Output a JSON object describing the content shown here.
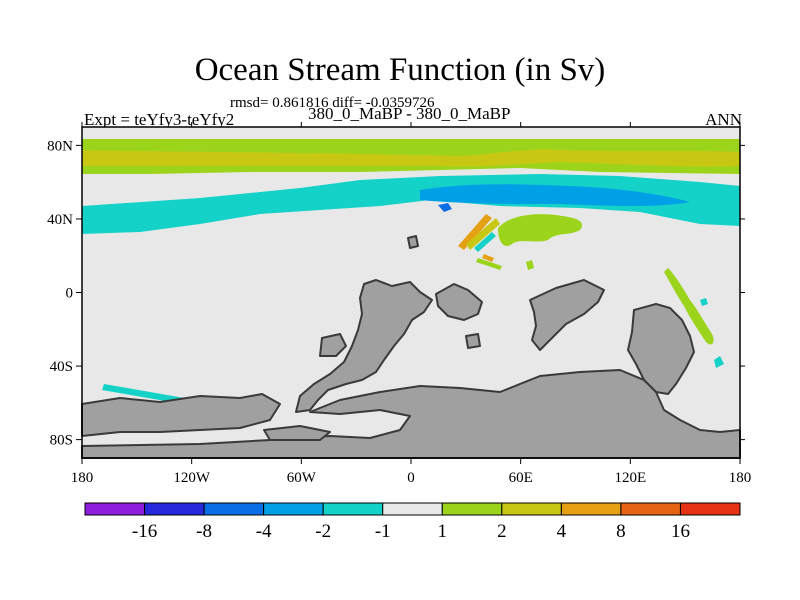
{
  "header": {
    "title": "Ocean Stream Function (in Sv)",
    "stats": "rmsd= 0.861816 diff= -0.0359726",
    "left_label": "Expt = teYfy3-teYfy2",
    "center_label": "380_0_MaBP - 380_0_MaBP",
    "right_label": "ANN"
  },
  "colors": {
    "ocean_zero": "#e8e8e8",
    "land": "#a0a0a0",
    "coast": "#3a3a3a",
    "band_green": "#9cd41c",
    "band_yellow": "#c8c814",
    "band_cyan": "#14d2c8",
    "band_blue": "#00a0e6"
  },
  "chart_data": {
    "type": "heatmap",
    "title": "Ocean Stream Function (in Sv)",
    "projection": "cylindrical equidistant",
    "xlim": [
      -180,
      180
    ],
    "ylim": [
      -90,
      90
    ],
    "x_ticks": [
      {
        "value": -180,
        "label": "180"
      },
      {
        "value": -120,
        "label": "120W"
      },
      {
        "value": -60,
        "label": "60W"
      },
      {
        "value": 0,
        "label": "0"
      },
      {
        "value": 60,
        "label": "60E"
      },
      {
        "value": 120,
        "label": "120E"
      },
      {
        "value": 180,
        "label": "180"
      }
    ],
    "y_ticks": [
      {
        "value": 80,
        "label": "80N"
      },
      {
        "value": 40,
        "label": "40N"
      },
      {
        "value": 0,
        "label": "0"
      },
      {
        "value": -40,
        "label": "40S"
      },
      {
        "value": -80,
        "label": "80S"
      }
    ],
    "contour_levels": [
      -16,
      -8,
      -4,
      -2,
      -1,
      1,
      2,
      4,
      8,
      16
    ],
    "colorbar_labels": [
      "-16",
      "-8",
      "-4",
      "-2",
      "-1",
      "1",
      "2",
      "4",
      "8",
      "16"
    ],
    "colorbar_colors": [
      "#8c1edc",
      "#2828dc",
      "#0a6ee6",
      "#00a0e6",
      "#14d2c8",
      "#e8e8e8",
      "#9cd41c",
      "#c8c814",
      "#e6a014",
      "#e66414",
      "#e63214"
    ],
    "features": [
      {
        "name": "Arctic band",
        "lat_range": [
          72,
          85
        ],
        "value_range": [
          2,
          4
        ]
      },
      {
        "name": "Northern mid-latitude band",
        "lat_range": [
          35,
          62
        ],
        "value_range": [
          -2,
          -1
        ]
      },
      {
        "name": "Northern core",
        "lat_range": [
          48,
          57
        ],
        "value_range": [
          -4,
          -2
        ]
      },
      {
        "name": "Indian Ocean positive patch",
        "lat_range": [
          30,
          42
        ],
        "value_range": [
          1,
          2
        ]
      },
      {
        "name": "Western Pacific streaks",
        "lat_range": [
          -40,
          15
        ],
        "value_range": [
          1,
          2
        ]
      },
      {
        "name": "Southern negative streak",
        "lat_range": [
          -57,
          -50
        ],
        "value_range": [
          -2,
          -1
        ]
      }
    ]
  }
}
